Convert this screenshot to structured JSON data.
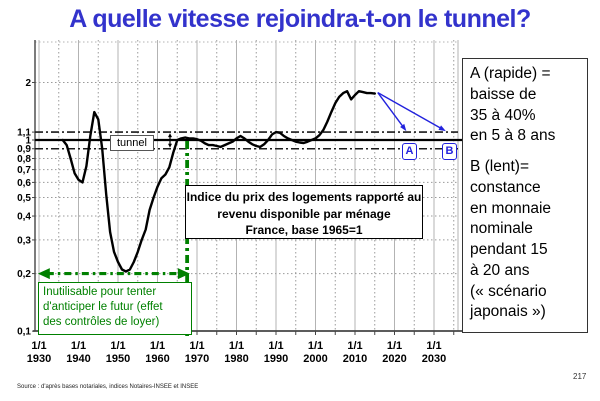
{
  "page": {
    "title": "A quelle vitesse rejoindra-t-on le tunnel?",
    "source": "Source : d'après bases notariales, indices Notaires-INSEE et INSEE",
    "page_number": "217"
  },
  "colors": {
    "title": "#3333cc",
    "curve": "#000000",
    "green": "#008000",
    "blue": "#2222dd",
    "grid": "#b3b3b3",
    "grid_dotted": "#9a9a9a",
    "axis": "#444444"
  },
  "annotations": {
    "tunnel_label": "tunnel",
    "index_box": "Indice du prix des logements rapporté au\nrevenu disponible par ménage\nFrance, base 1965=1",
    "green_box": "Inutilisable pour tenter\nd'anticiper le futur (effet\ndes contrôles de loyer)",
    "scenario_a": "A (rapide) =\nbaisse de\n35 à 40%\nen 5 à 8 ans",
    "scenario_b": "B (lent)=\nconstance\nen monnaie\nnominale\npendant 15\nà 20 ans\n(« scénario\njaponais »)",
    "label_a": "A",
    "label_b": "B"
  },
  "chart_data": {
    "type": "line",
    "title": "Indice du prix des logements rapporté au revenu disponible par ménage, France, base 1965=1",
    "y_log": true,
    "x_range": [
      1929,
      2036
    ],
    "y_range": [
      0.1,
      3
    ],
    "x_ticks": [
      {
        "year": 1930,
        "label": "1/1\n1930"
      },
      {
        "year": 1940,
        "label": "1/1\n1940"
      },
      {
        "year": 1950,
        "label": "1/1\n1950"
      },
      {
        "year": 1960,
        "label": "1/1\n1960"
      },
      {
        "year": 1970,
        "label": "1/1\n1970"
      },
      {
        "year": 1980,
        "label": "1/1\n1980"
      },
      {
        "year": 1990,
        "label": "1/1\n1990"
      },
      {
        "year": 2000,
        "label": "1/1\n2000"
      },
      {
        "year": 2010,
        "label": "1/1\n2010"
      },
      {
        "year": 2020,
        "label": "1/1\n2020"
      },
      {
        "year": 2030,
        "label": "1/1\n2030"
      }
    ],
    "y_ticks": [
      {
        "value": 2,
        "label": "2"
      },
      {
        "value": 1.1,
        "label": "1,1"
      },
      {
        "value": 1,
        "label": "1"
      },
      {
        "value": 0.9,
        "label": "0,9"
      },
      {
        "value": 0.8,
        "label": "0,8"
      },
      {
        "value": 0.7,
        "label": "0,7"
      },
      {
        "value": 0.6,
        "label": "0,6"
      },
      {
        "value": 0.5,
        "label": "0,5"
      },
      {
        "value": 0.4,
        "label": "0,4"
      },
      {
        "value": 0.3,
        "label": "0,3"
      },
      {
        "value": 0.2,
        "label": "0,2"
      },
      {
        "value": 0.1,
        "label": "0,1"
      }
    ],
    "y_gridlines": [
      2,
      0.8,
      0.7,
      0.6,
      0.5,
      0.4,
      0.3,
      0.2
    ],
    "x_gridlines_solid": [
      1930,
      1940,
      1950,
      1960,
      1970,
      1980,
      1990,
      2000,
      2010,
      2020,
      2030
    ],
    "x_gridlines_dotted": [
      1935,
      1945,
      1955,
      1965,
      1975,
      1985,
      1995,
      2005,
      2015,
      2025,
      2035
    ],
    "tunnel": {
      "upper": 1.1,
      "center": 1.0,
      "lower": 0.9
    },
    "series": [
      {
        "name": "Indice du prix des logements / revenu disponible par ménage",
        "points": [
          [
            1936,
            1.0
          ],
          [
            1937,
            0.94
          ],
          [
            1938,
            0.8
          ],
          [
            1939,
            0.67
          ],
          [
            1940,
            0.62
          ],
          [
            1941,
            0.6
          ],
          [
            1942,
            0.73
          ],
          [
            1943,
            1.05
          ],
          [
            1944,
            1.4
          ],
          [
            1945,
            1.28
          ],
          [
            1946,
            0.9
          ],
          [
            1947,
            0.52
          ],
          [
            1948,
            0.33
          ],
          [
            1949,
            0.26
          ],
          [
            1950,
            0.23
          ],
          [
            1951,
            0.21
          ],
          [
            1952,
            0.205
          ],
          [
            1953,
            0.21
          ],
          [
            1954,
            0.23
          ],
          [
            1955,
            0.26
          ],
          [
            1956,
            0.3
          ],
          [
            1957,
            0.34
          ],
          [
            1958,
            0.43
          ],
          [
            1959,
            0.5
          ],
          [
            1960,
            0.57
          ],
          [
            1961,
            0.63
          ],
          [
            1962,
            0.66
          ],
          [
            1963,
            0.72
          ],
          [
            1964,
            0.86
          ],
          [
            1965,
            1.0
          ],
          [
            1966,
            1.02
          ],
          [
            1967,
            1.03
          ],
          [
            1968,
            1.02
          ],
          [
            1969,
            1.02
          ],
          [
            1970,
            1.01
          ],
          [
            1971,
            0.99
          ],
          [
            1972,
            0.96
          ],
          [
            1973,
            0.94
          ],
          [
            1974,
            0.94
          ],
          [
            1975,
            0.93
          ],
          [
            1976,
            0.92
          ],
          [
            1977,
            0.94
          ],
          [
            1978,
            0.96
          ],
          [
            1979,
            0.98
          ],
          [
            1980,
            1.02
          ],
          [
            1981,
            1.05
          ],
          [
            1982,
            1.02
          ],
          [
            1983,
            0.98
          ],
          [
            1984,
            0.95
          ],
          [
            1985,
            0.93
          ],
          [
            1986,
            0.92
          ],
          [
            1987,
            0.95
          ],
          [
            1988,
            1.0
          ],
          [
            1989,
            1.07
          ],
          [
            1990,
            1.1
          ],
          [
            1991,
            1.09
          ],
          [
            1992,
            1.05
          ],
          [
            1993,
            1.02
          ],
          [
            1994,
            1.0
          ],
          [
            1995,
            0.98
          ],
          [
            1996,
            0.97
          ],
          [
            1997,
            0.965
          ],
          [
            1998,
            0.98
          ],
          [
            1999,
            1.0
          ],
          [
            2000,
            1.02
          ],
          [
            2001,
            1.06
          ],
          [
            2002,
            1.13
          ],
          [
            2003,
            1.25
          ],
          [
            2004,
            1.4
          ],
          [
            2005,
            1.56
          ],
          [
            2006,
            1.68
          ],
          [
            2007,
            1.76
          ],
          [
            2008,
            1.8
          ],
          [
            2009,
            1.63
          ],
          [
            2010,
            1.72
          ],
          [
            2011,
            1.8
          ],
          [
            2012,
            1.78
          ],
          [
            2013,
            1.76
          ],
          [
            2014,
            1.76
          ],
          [
            2015,
            1.75
          ]
        ]
      }
    ],
    "scenario_arrows": [
      {
        "label": "A",
        "to_year": 2023,
        "to_value": 1.1
      },
      {
        "label": "B",
        "to_year": 2033,
        "to_value": 1.1
      }
    ],
    "green_marker": {
      "vline_year": 1967.5,
      "vline_top_value": 1.0,
      "arrow_value": 0.2,
      "arrow_from_year": 1929.7,
      "arrow_to_year": 1968.2
    }
  }
}
